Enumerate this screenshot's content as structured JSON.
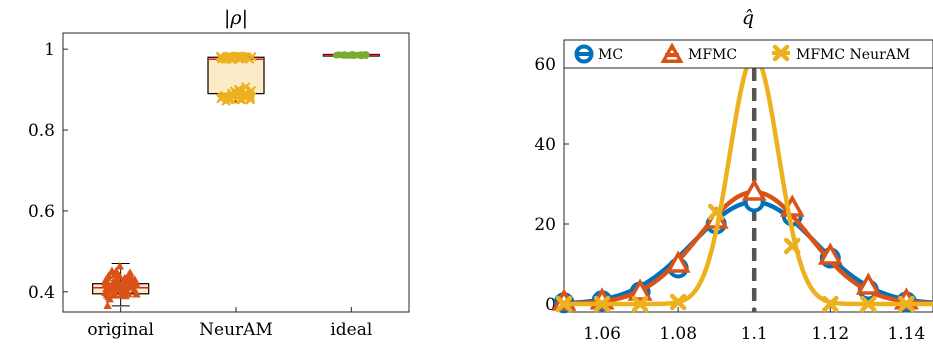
{
  "colors": {
    "mc": "#0072BD",
    "mfmc": "#D95319",
    "neuram": "#EDB120",
    "ideal": "#77AC30",
    "box_fill": "#FDEBC8",
    "median": "#E02020"
  },
  "chart_data": [
    {
      "type": "box",
      "title": "|ρ|",
      "categories": [
        "original",
        "NeurAM",
        "ideal"
      ],
      "ylim": [
        0.35,
        1.04
      ],
      "yticks": [
        0.4,
        0.6,
        0.8,
        1
      ],
      "ytick_labels": [
        "0.4",
        "0.6",
        "0.8",
        "1"
      ],
      "grid": false,
      "boxes": [
        {
          "category": "original",
          "q1": 0.395,
          "median": 0.41,
          "q3": 0.42,
          "whisker_low": 0.365,
          "whisker_high": 0.47,
          "marker": "triangle",
          "color_key": "mfmc",
          "points_range": [
            0.36,
            0.47
          ],
          "n_points": 80
        },
        {
          "category": "NeurAM",
          "q1": 0.89,
          "median": 0.975,
          "q3": 0.98,
          "whisker_low": 0.87,
          "whisker_high": 0.98,
          "marker": "x",
          "color_key": "neuram",
          "clusters": [
            [
              0.87,
              0.91
            ],
            [
              0.975,
              0.983
            ]
          ],
          "n_points": 60
        },
        {
          "category": "ideal",
          "q1": 0.983,
          "median": 0.985,
          "q3": 0.987,
          "whisker_low": 0.98,
          "whisker_high": 0.99,
          "marker": "dot",
          "color_key": "ideal",
          "points_range": [
            0.982,
            0.989
          ],
          "n_points": 40
        }
      ]
    },
    {
      "type": "line",
      "title": "q̂",
      "xlim": [
        1.05,
        1.147
      ],
      "ylim": [
        -2,
        66
      ],
      "xticks": [
        1.06,
        1.08,
        1.1,
        1.12,
        1.14
      ],
      "xtick_labels": [
        "1.06",
        "1.08",
        "1.1",
        "1.12",
        "1.14"
      ],
      "yticks": [
        0,
        20,
        40,
        60
      ],
      "ytick_labels": [
        "0",
        "20",
        "40",
        "60"
      ],
      "vline_x": 1.1,
      "legend": {
        "position": "top",
        "entries": [
          "MC",
          "MFMC",
          "MFMC NeurAM"
        ]
      },
      "series": [
        {
          "name": "MC",
          "color_key": "mc",
          "marker": "circle",
          "mean": 1.1,
          "std": 0.016,
          "peak": 25.5,
          "x": [
            1.05,
            1.06,
            1.07,
            1.08,
            1.09,
            1.1,
            1.11,
            1.12,
            1.13,
            1.14
          ],
          "y": [
            0.3,
            0.8,
            3,
            9,
            20,
            25.5,
            22,
            11.5,
            3.5,
            0.5
          ]
        },
        {
          "name": "MFMC",
          "color_key": "mfmc",
          "marker": "triangle",
          "mean": 1.1,
          "std": 0.0145,
          "peak": 28,
          "x": [
            1.05,
            1.06,
            1.07,
            1.08,
            1.09,
            1.1,
            1.11,
            1.12,
            1.13,
            1.14
          ],
          "y": [
            0.5,
            0.8,
            3,
            10,
            21,
            28,
            24,
            12,
            4.5,
            0.8
          ]
        },
        {
          "name": "MFMC NeurAM",
          "color_key": "neuram",
          "marker": "x",
          "mean": 1.1,
          "std": 0.0064,
          "peak": 62,
          "x": [
            1.05,
            1.06,
            1.07,
            1.08,
            1.09,
            1.1,
            1.11,
            1.12,
            1.13,
            1.14
          ],
          "y": [
            0,
            0,
            0,
            0.5,
            23,
            62,
            14.5,
            0,
            0,
            0
          ]
        }
      ]
    }
  ]
}
